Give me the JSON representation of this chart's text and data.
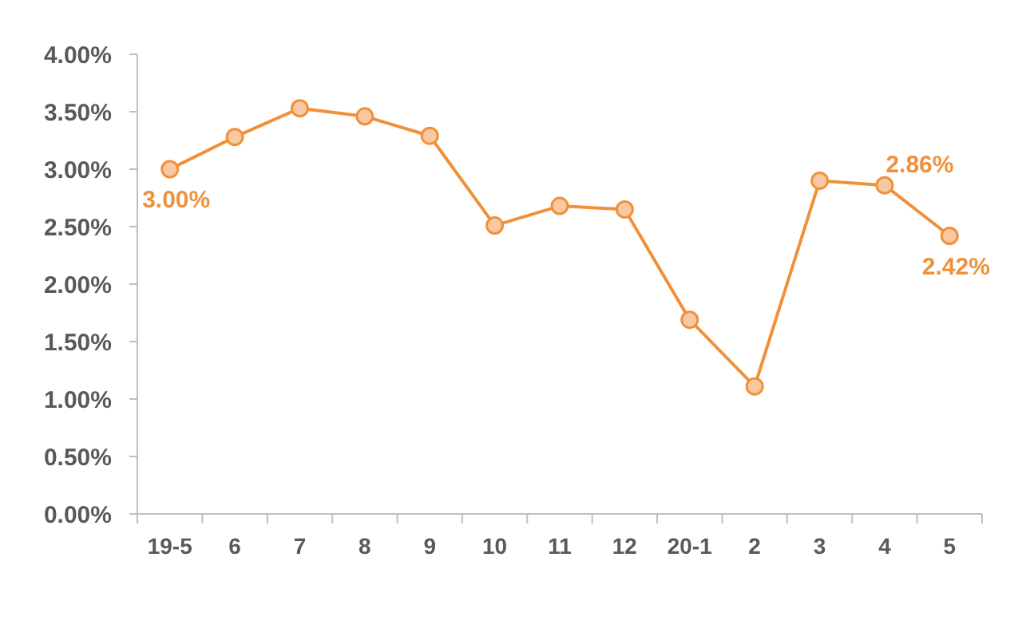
{
  "chart_data": {
    "type": "line",
    "categories": [
      "19-5",
      "6",
      "7",
      "8",
      "9",
      "10",
      "11",
      "12",
      "20-1",
      "2",
      "3",
      "4",
      "5"
    ],
    "series": [
      {
        "color": "#f0913a",
        "values": [
          3.0,
          3.28,
          3.53,
          3.46,
          3.29,
          2.51,
          2.68,
          2.65,
          1.69,
          1.11,
          2.9,
          2.86,
          2.42
        ],
        "value_labels": [
          "3.00%",
          null,
          null,
          null,
          null,
          null,
          null,
          null,
          null,
          null,
          null,
          "2.86%",
          "2.42%"
        ]
      }
    ],
    "ylim": [
      0,
      4
    ],
    "yticks": [
      {
        "value": 0,
        "label": "0.00%"
      },
      {
        "value": 0.5,
        "label": "0.50%"
      },
      {
        "value": 1,
        "label": "1.00%"
      },
      {
        "value": 1.5,
        "label": "1.50%"
      },
      {
        "value": 2,
        "label": "2.00%"
      },
      {
        "value": 2.5,
        "label": "2.50%"
      },
      {
        "value": 3,
        "label": "3.00%"
      },
      {
        "value": 3.5,
        "label": "3.50%"
      },
      {
        "value": 4,
        "label": "4.00%"
      }
    ],
    "grid": false,
    "marker": "circle",
    "line_style": "solid"
  }
}
